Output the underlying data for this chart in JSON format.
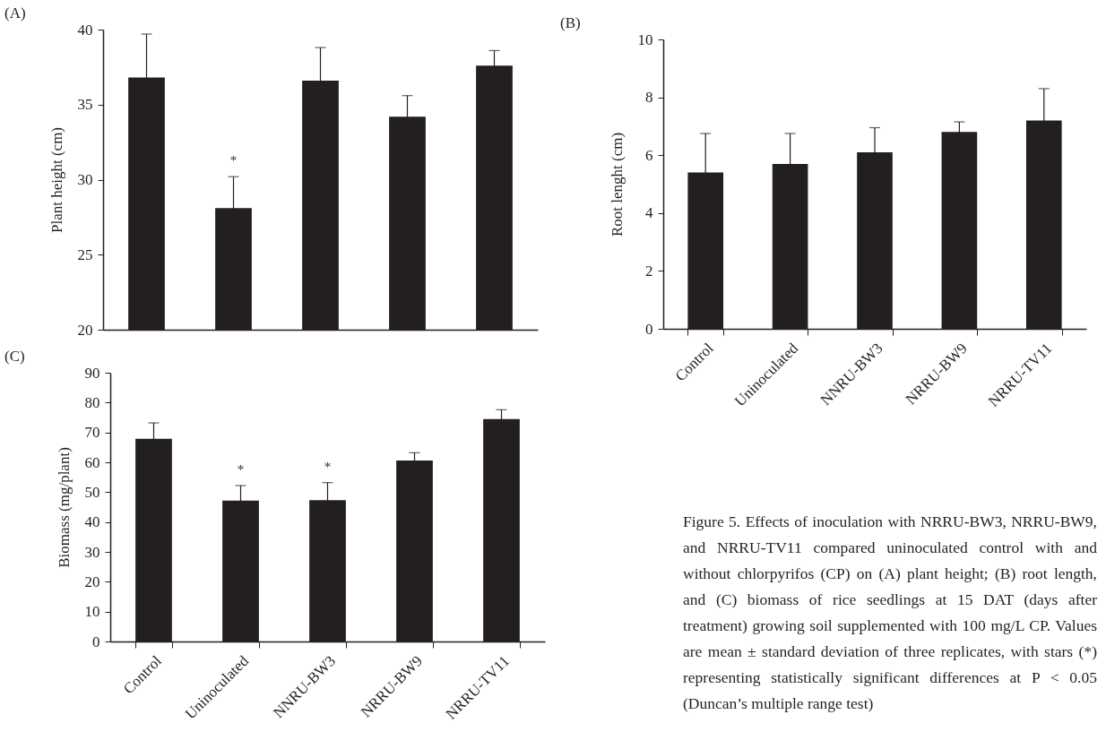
{
  "chart_data": [
    {
      "type": "bar",
      "title": "(A)",
      "ylabel": "Plant height (cm)",
      "categories": [
        null,
        null,
        null,
        null,
        null
      ],
      "tick_labels": "y",
      "values": [
        36.8,
        28.1,
        36.6,
        34.2,
        37.6
      ],
      "errors": [
        2.9,
        2.1,
        2.2,
        1.4,
        1.0
      ],
      "color": "#231f20",
      "ylim": [
        20,
        40
      ],
      "yticks": [
        20,
        25,
        30,
        35,
        40
      ],
      "value_labels": [
        null,
        "*",
        null,
        null,
        null
      ]
    },
    {
      "type": "bar",
      "title": "(B)",
      "ylabel": "Root lenght (cm)",
      "categories": [
        "Control",
        "Uninoculated",
        "NNRU-BW3",
        "NRRU-BW9",
        "NRRU-TV11"
      ],
      "values": [
        5.4,
        5.7,
        6.1,
        6.8,
        7.2
      ],
      "errors": [
        1.35,
        1.05,
        0.85,
        0.35,
        1.1
      ],
      "color": "#231f20",
      "ylim": [
        0,
        10
      ],
      "yticks": [
        0,
        2,
        4,
        6,
        8,
        10
      ]
    },
    {
      "type": "bar",
      "title": "(C)",
      "ylabel": "Biomass (mg/plant)",
      "categories": [
        "Control",
        "Uninoculated",
        "NNRU-BW3",
        "NRRU-BW9",
        "NRRU-TV11"
      ],
      "values": [
        67.9,
        47.2,
        47.3,
        60.6,
        74.5
      ],
      "errors": [
        5.3,
        5.0,
        5.9,
        2.6,
        3.1
      ],
      "color": "#231f20",
      "ylim": [
        0,
        90
      ],
      "yticks": [
        0,
        10,
        20,
        30,
        40,
        50,
        60,
        70,
        80,
        90
      ],
      "value_labels": [
        null,
        "*",
        "*",
        null,
        null
      ]
    },
    {
      "type": "other",
      "annotations": [
        "Figure 5. Effects of inoculation with NRRU-BW3, NRRU-BW9, and NRRU-TV11 compared uninoculated control with and without chlorpyrifos (CP) on (A) plant height; (B) root length, and (C) biomass of rice seedlings at 15 DAT (days after treatment) growing soil supplemented with 100 mg/L CP. Values are mean ± standard deviation of three replicates, with stars (*) representing statistically significant differences at P < 0.05 (Duncan’s multiple range test)"
      ]
    }
  ]
}
